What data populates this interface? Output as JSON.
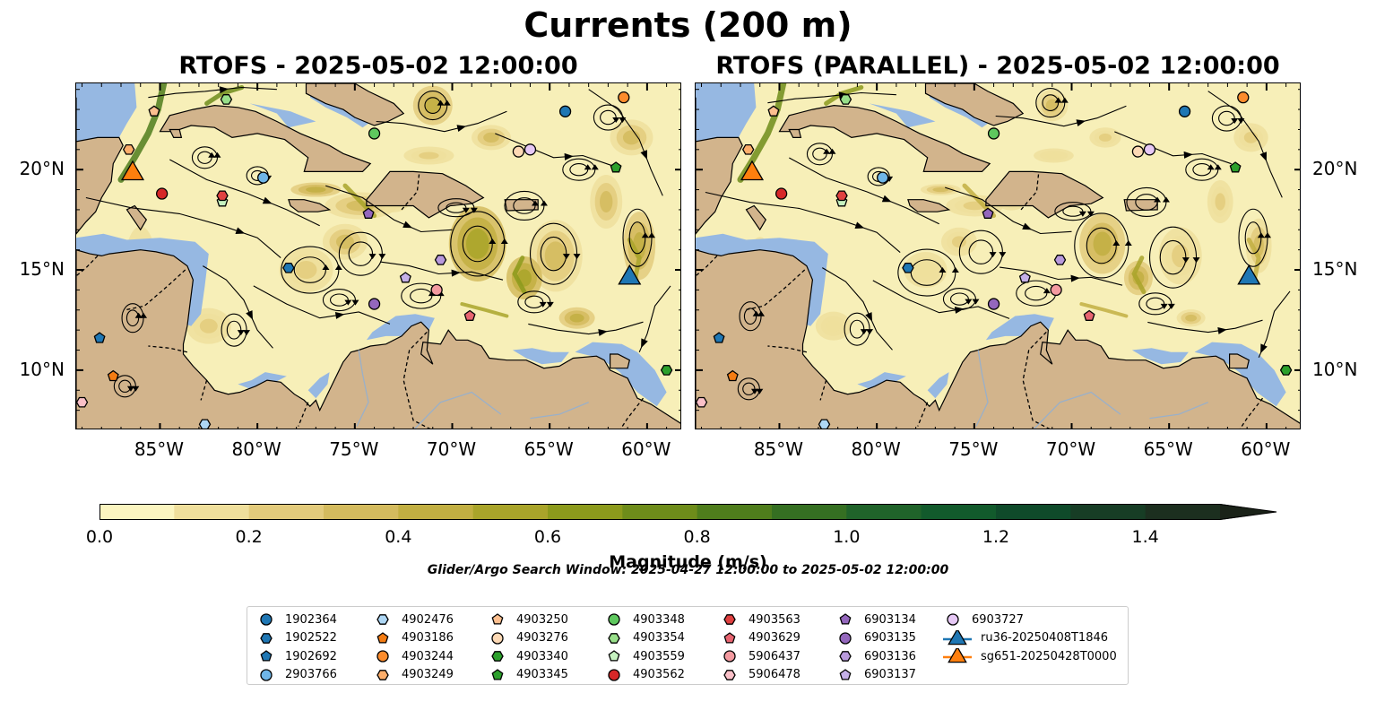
{
  "figure": {
    "suptitle": "Currents (200 m)",
    "panels": [
      {
        "title": "RTOFS - 2025-05-02 12:00:00"
      },
      {
        "title": "RTOFS (PARALLEL) - 2025-05-02 12:00:00"
      }
    ],
    "lon_ticks": [
      "85°W",
      "80°W",
      "75°W",
      "70°W",
      "65°W",
      "60°W"
    ],
    "lat_ticks": [
      "20°N",
      "15°N",
      "10°N"
    ],
    "colorbar": {
      "label": "Magnitude (m/s)",
      "ticks": [
        "0.0",
        "0.2",
        "0.4",
        "0.6",
        "0.8",
        "1.0",
        "1.2",
        "1.4"
      ],
      "colors": [
        "#fbf5c0",
        "#efdf9c",
        "#e3cb7c",
        "#d4bb5e",
        "#c2af42",
        "#a9a42a",
        "#8c9a1c",
        "#6e8c1a",
        "#4f7d1c",
        "#356f22",
        "#20632a",
        "#125a2c",
        "#0f4a2a",
        "#173d25",
        "#1c2f1f",
        "#1a2218"
      ]
    },
    "search_window": "Glider/Argo Search Window: 2025-04-27 12:00:00 to 2025-05-02 12:00:00"
  },
  "colors": {
    "land": "#d2b48c",
    "shallow": "#96b8e2",
    "ocean_low": "#f7efb8"
  },
  "legend": [
    {
      "label": "1902364",
      "marker": "circle",
      "color": "#1f77b4"
    },
    {
      "label": "1902522",
      "marker": "hexagon",
      "color": "#1f77b4"
    },
    {
      "label": "1902692",
      "marker": "pentagon",
      "color": "#1f77b4"
    },
    {
      "label": "2903766",
      "marker": "circle",
      "color": "#6fb6e8"
    },
    {
      "label": "4902476",
      "marker": "hexagon",
      "color": "#aed7f5"
    },
    {
      "label": "4903186",
      "marker": "pentagon",
      "color": "#f47c13"
    },
    {
      "label": "4903244",
      "marker": "circle",
      "color": "#fd8c2c"
    },
    {
      "label": "4903249",
      "marker": "hexagon",
      "color": "#fdae6b"
    },
    {
      "label": "4903250",
      "marker": "pentagon",
      "color": "#fdbf8f"
    },
    {
      "label": "4903276",
      "marker": "circle",
      "color": "#fdd9b5"
    },
    {
      "label": "4903340",
      "marker": "hexagon",
      "color": "#2ca02c"
    },
    {
      "label": "4903345",
      "marker": "pentagon",
      "color": "#2ca02c"
    },
    {
      "label": "4903348",
      "marker": "circle",
      "color": "#5ec85e"
    },
    {
      "label": "4903354",
      "marker": "hexagon",
      "color": "#98df8a"
    },
    {
      "label": "4903559",
      "marker": "pentagon",
      "color": "#c6f2c0"
    },
    {
      "label": "4903562",
      "marker": "circle",
      "color": "#d62728"
    },
    {
      "label": "4903563",
      "marker": "hexagon",
      "color": "#e04040"
    },
    {
      "label": "4903629",
      "marker": "pentagon",
      "color": "#e86470"
    },
    {
      "label": "5906437",
      "marker": "circle",
      "color": "#f49aa0"
    },
    {
      "label": "5906478",
      "marker": "hexagon",
      "color": "#fac0c8"
    },
    {
      "label": "6903134",
      "marker": "pentagon",
      "color": "#9467bd"
    },
    {
      "label": "6903135",
      "marker": "circle",
      "color": "#9467bd"
    },
    {
      "label": "6903136",
      "marker": "hexagon",
      "color": "#b899dc"
    },
    {
      "label": "6903137",
      "marker": "pentagon",
      "color": "#c5b0e8"
    },
    {
      "label": "6903727",
      "marker": "circle",
      "color": "#e6c8f5"
    },
    {
      "label": "ru36-20250408T1846",
      "marker": "triangle",
      "color": "#1f77b4"
    },
    {
      "label": "sg651-20250428T0000",
      "marker": "triangle",
      "color": "#ff7f0e"
    }
  ],
  "floats": [
    {
      "id": "1902364",
      "lon": -64.2,
      "lat": 22.9
    },
    {
      "id": "1902522",
      "lon": -78.4,
      "lat": 15.1
    },
    {
      "id": "2903766",
      "lon": -79.7,
      "lat": 19.6
    },
    {
      "id": "4902476",
      "lon": -82.7,
      "lat": 7.3
    },
    {
      "id": "1902692",
      "lon": -88.1,
      "lat": 11.6
    },
    {
      "id": "4903186",
      "lon": -87.4,
      "lat": 9.7
    },
    {
      "id": "4903244",
      "lon": -61.2,
      "lat": 23.6
    },
    {
      "id": "4903249",
      "lon": -86.6,
      "lat": 21.0
    },
    {
      "id": "4903250",
      "lon": -85.3,
      "lat": 22.9
    },
    {
      "id": "4903276",
      "lon": -66.6,
      "lat": 20.9
    },
    {
      "id": "4903345",
      "lon": -61.6,
      "lat": 20.1
    },
    {
      "id": "4903340",
      "lon": -59.0,
      "lat": 10.0
    },
    {
      "id": "4903348",
      "lon": -74.0,
      "lat": 21.8
    },
    {
      "id": "4903354",
      "lon": -81.6,
      "lat": 23.5
    },
    {
      "id": "4903559",
      "lon": -81.8,
      "lat": 18.4
    },
    {
      "id": "4903562",
      "lon": -84.9,
      "lat": 18.8
    },
    {
      "id": "4903563",
      "lon": -81.8,
      "lat": 18.7
    },
    {
      "id": "4903629",
      "lon": -69.1,
      "lat": 12.7
    },
    {
      "id": "5906437",
      "lon": -70.8,
      "lat": 14.0
    },
    {
      "id": "5906478",
      "lon": -89.0,
      "lat": 8.4
    },
    {
      "id": "6903134",
      "lon": -74.3,
      "lat": 17.8
    },
    {
      "id": "6903135",
      "lon": -74.0,
      "lat": 13.3
    },
    {
      "id": "6903136",
      "lon": -70.6,
      "lat": 15.5
    },
    {
      "id": "6903137",
      "lon": -72.4,
      "lat": 14.6
    },
    {
      "id": "6903727",
      "lon": -66.0,
      "lat": 21.0
    }
  ],
  "gliders": [
    {
      "id": "ru36-20250408T1846",
      "lon": -60.9,
      "lat": 14.6
    },
    {
      "id": "sg651-20250428T0000",
      "lon": -86.4,
      "lat": 19.8
    }
  ]
}
